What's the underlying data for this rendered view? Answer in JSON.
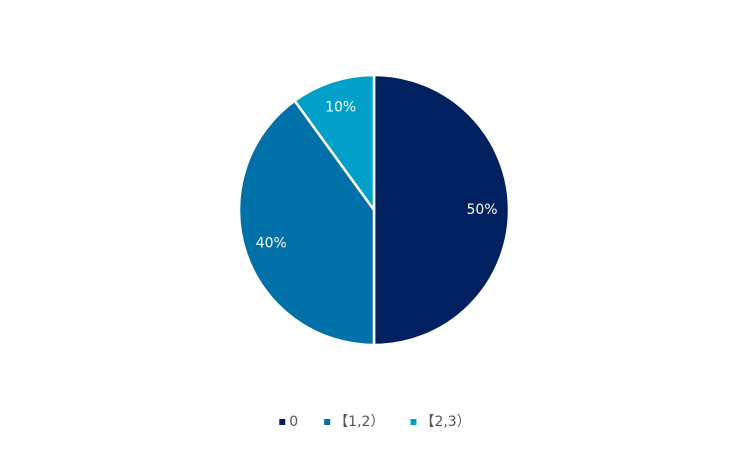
{
  "chart_data": {
    "type": "pie",
    "categories": [
      "0",
      "【1,2）",
      "【2,3）"
    ],
    "values": [
      50,
      40,
      10
    ],
    "value_labels": [
      "50%",
      "40%",
      "10%"
    ],
    "colors": [
      "#002060",
      "#0070a8",
      "#00a0c8"
    ],
    "legend": "bottom"
  }
}
